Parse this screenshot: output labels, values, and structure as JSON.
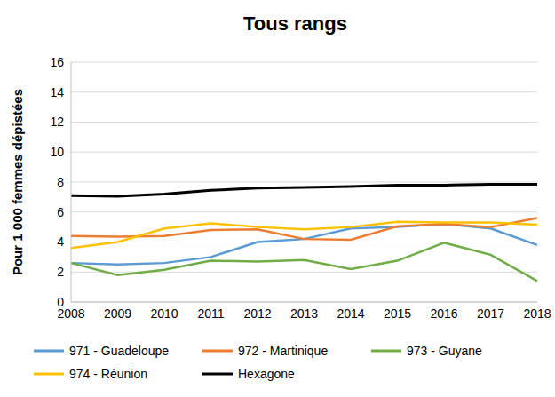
{
  "chart_data": {
    "type": "line",
    "title": "Tous rangs",
    "y_label": "Pour 1 000 femmes dépistées",
    "categories": [
      "2008",
      "2009",
      "2010",
      "2011",
      "2012",
      "2013",
      "2014",
      "2015",
      "2016",
      "2017",
      "2018"
    ],
    "series": [
      {
        "name": "971 - Guadeloupe",
        "color": "#5B9BD5",
        "values": [
          2.6,
          2.5,
          2.6,
          3.0,
          4.0,
          4.2,
          4.9,
          5.0,
          5.2,
          4.9,
          3.8
        ]
      },
      {
        "name": "972 - Martinique",
        "color": "#ED7D31",
        "values": [
          4.4,
          4.35,
          4.4,
          4.8,
          4.85,
          4.2,
          4.15,
          5.05,
          5.2,
          5.0,
          5.6
        ]
      },
      {
        "name": "973 - Guyane",
        "color": "#70AD47",
        "values": [
          2.6,
          1.8,
          2.15,
          2.75,
          2.7,
          2.8,
          2.2,
          2.75,
          3.95,
          3.15,
          1.4
        ]
      },
      {
        "name": "974 - Réunion",
        "color": "#FFC000",
        "values": [
          3.6,
          4.0,
          4.9,
          5.25,
          5.0,
          4.85,
          5.0,
          5.35,
          5.3,
          5.3,
          5.15
        ]
      },
      {
        "name": "Hexagone",
        "color": "#000000",
        "values": [
          7.1,
          7.05,
          7.2,
          7.45,
          7.6,
          7.65,
          7.7,
          7.8,
          7.8,
          7.85,
          7.85
        ]
      }
    ],
    "ylim": [
      0,
      16
    ],
    "yticks": [
      0,
      2,
      4,
      6,
      8,
      10,
      12,
      14,
      16
    ],
    "grid": true,
    "legend": "bottom"
  }
}
